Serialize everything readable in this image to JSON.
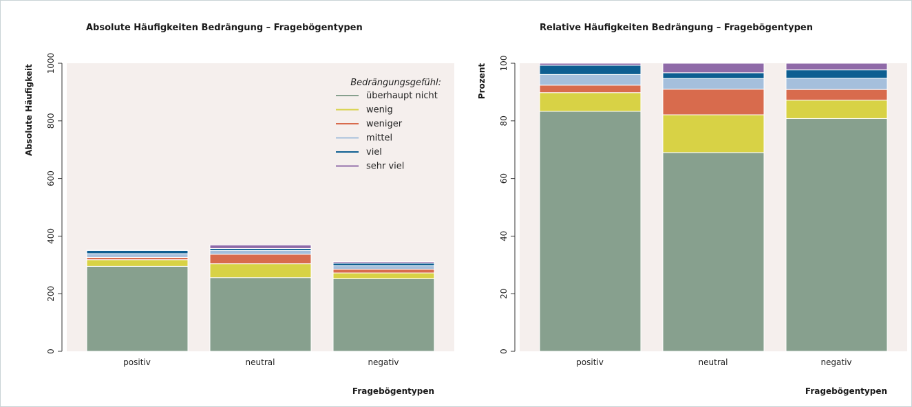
{
  "chart_data": [
    {
      "type": "bar",
      "stacked": true,
      "title": "Absolute Häufigkeiten Bedrängung – Fragebögentypen",
      "xlabel": "Fragebögentypen",
      "ylabel": "Absolute Häufigkeit",
      "ylim": [
        0,
        1000
      ],
      "yticks": [
        "0",
        "200",
        "400",
        "600",
        "800",
        "1000"
      ],
      "categories": [
        "positiv",
        "neutral",
        "negativ"
      ],
      "legend": {
        "title": "Bedrängungsgefühl:",
        "position": "top-right"
      },
      "series": [
        {
          "name": "überhaupt nicht",
          "color": "#87a08e",
          "values": [
            295,
            256,
            252
          ]
        },
        {
          "name": "wenig",
          "color": "#d8d245",
          "values": [
            23,
            48,
            20
          ]
        },
        {
          "name": "weniger",
          "color": "#d86b4d",
          "values": [
            8,
            33,
            13
          ]
        },
        {
          "name": "mittel",
          "color": "#a5bfdc",
          "values": [
            13,
            13,
            12
          ]
        },
        {
          "name": "viel",
          "color": "#0d5e91",
          "values": [
            11,
            7,
            9
          ]
        },
        {
          "name": "sehr viel",
          "color": "#8f6aa8",
          "values": [
            1,
            12,
            5
          ]
        }
      ]
    },
    {
      "type": "bar",
      "stacked": true,
      "title": "Relative Häufigkeiten Bedrängung – Fragebögentypen",
      "xlabel": "Fragebögentypen",
      "ylabel": "Prozent",
      "ylim": [
        0,
        100
      ],
      "yticks": [
        "0",
        "20",
        "40",
        "60",
        "80",
        "100"
      ],
      "categories": [
        "positiv",
        "neutral",
        "negativ"
      ],
      "series": [
        {
          "name": "überhaupt nicht",
          "color": "#87a08e",
          "values": [
            83.3,
            69.0,
            80.8
          ]
        },
        {
          "name": "wenig",
          "color": "#d8d245",
          "values": [
            6.5,
            13.1,
            6.4
          ]
        },
        {
          "name": "weniger",
          "color": "#d86b4d",
          "values": [
            2.6,
            8.9,
            3.7
          ]
        },
        {
          "name": "mittel",
          "color": "#a5bfdc",
          "values": [
            3.7,
            3.7,
            3.9
          ]
        },
        {
          "name": "viel",
          "color": "#0d5e91",
          "values": [
            3.2,
            2.0,
            2.9
          ]
        },
        {
          "name": "sehr viel",
          "color": "#8f6aa8",
          "values": [
            0.7,
            3.3,
            2.3
          ]
        }
      ]
    }
  ],
  "style": {
    "panel_background": "#f5efed",
    "bar_outline": "#ffffff"
  }
}
